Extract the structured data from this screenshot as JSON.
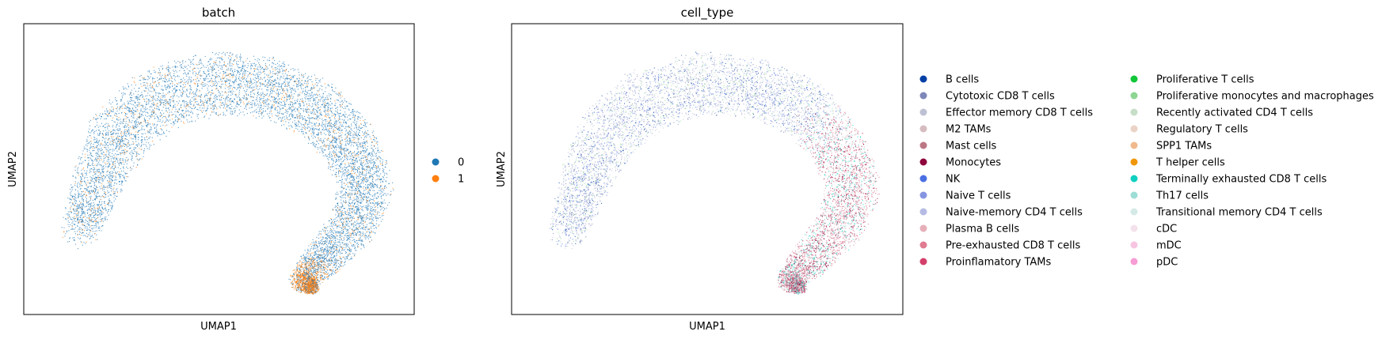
{
  "chart_data": [
    {
      "type": "scatter",
      "title": "batch",
      "xlabel": "UMAP1",
      "ylabel": "UMAP2",
      "ticks": "none",
      "legend_position": "right",
      "series": [
        {
          "name": "0",
          "color": "#1f77b4"
        },
        {
          "name": "1",
          "color": "#ff7f0e"
        }
      ]
    },
    {
      "type": "scatter",
      "title": "cell_type",
      "xlabel": "UMAP1",
      "ylabel": "UMAP2",
      "ticks": "none",
      "legend_position": "right",
      "legend_columns": 2,
      "series": [
        {
          "name": "B cells",
          "color": "#023fa5"
        },
        {
          "name": "Cytotoxic CD8 T cells",
          "color": "#7d87b9"
        },
        {
          "name": "Effector memory CD8 T cells",
          "color": "#bec1d4"
        },
        {
          "name": "M2 TAMs",
          "color": "#d6bcc0"
        },
        {
          "name": "Mast cells",
          "color": "#bb7784"
        },
        {
          "name": "Monocytes",
          "color": "#8e063b"
        },
        {
          "name": "NK",
          "color": "#4a6fe3"
        },
        {
          "name": "Naive T cells",
          "color": "#8595e1"
        },
        {
          "name": "Naive-memory CD4 T cells",
          "color": "#b5bbe3"
        },
        {
          "name": "Plasma B cells",
          "color": "#e6afb9"
        },
        {
          "name": "Pre-exhausted CD8 T cells",
          "color": "#e07b91"
        },
        {
          "name": "Proinflamatory TAMs",
          "color": "#d33f6a"
        },
        {
          "name": "Proliferative T cells",
          "color": "#11c638"
        },
        {
          "name": "Proliferative monocytes and macrophages",
          "color": "#8dd593"
        },
        {
          "name": "Recently activated CD4 T cells",
          "color": "#c6dec7"
        },
        {
          "name": "Regulatory T cells",
          "color": "#ead3c6"
        },
        {
          "name": "SPP1 TAMs",
          "color": "#f0b98d"
        },
        {
          "name": "T helper cells",
          "color": "#ef9708"
        },
        {
          "name": "Terminally exhausted CD8 T cells",
          "color": "#0fcfc0"
        },
        {
          "name": "Th17 cells",
          "color": "#9cded6"
        },
        {
          "name": "Transitional memory CD4 T cells",
          "color": "#d5eae7"
        },
        {
          "name": "cDC",
          "color": "#f3e1eb"
        },
        {
          "name": "mDC",
          "color": "#f6c4e1"
        },
        {
          "name": "pDC",
          "color": "#f79cd4"
        }
      ]
    }
  ]
}
